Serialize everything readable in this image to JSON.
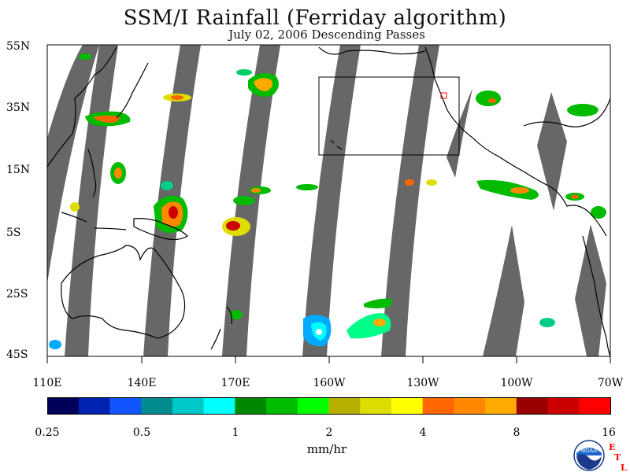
{
  "header": {
    "title": "SSM/I Rainfall (Ferriday algorithm)",
    "subtitle": "July 02, 2006  Descending Passes"
  },
  "axes": {
    "lat_labels": [
      "55N",
      "35N",
      "15N",
      "5S",
      "25S",
      "45S"
    ],
    "lon_labels": [
      "110E",
      "140E",
      "170E",
      "160W",
      "130W",
      "100W",
      "70W"
    ]
  },
  "colorbar": {
    "unit": "mm/hr",
    "tick_labels": [
      "0.25",
      "0.5",
      "1",
      "2",
      "4",
      "8",
      "16"
    ],
    "colors": [
      "#00005a",
      "#0022b0",
      "#1155ff",
      "#008c8c",
      "#00c8c8",
      "#00ffff",
      "#008800",
      "#00bb00",
      "#00ff00",
      "#b8b000",
      "#dddd00",
      "#ffff00",
      "#ff6600",
      "#ff8800",
      "#ffaa00",
      "#990000",
      "#cc0000",
      "#ff0000"
    ]
  },
  "colors": {
    "swath_gap": "#676767",
    "coast": "#000000",
    "box": "#000000",
    "marker": "#ff0000"
  },
  "logo": {
    "agency": "NOAA",
    "lab_letters": [
      "E",
      "T",
      "L"
    ]
  }
}
